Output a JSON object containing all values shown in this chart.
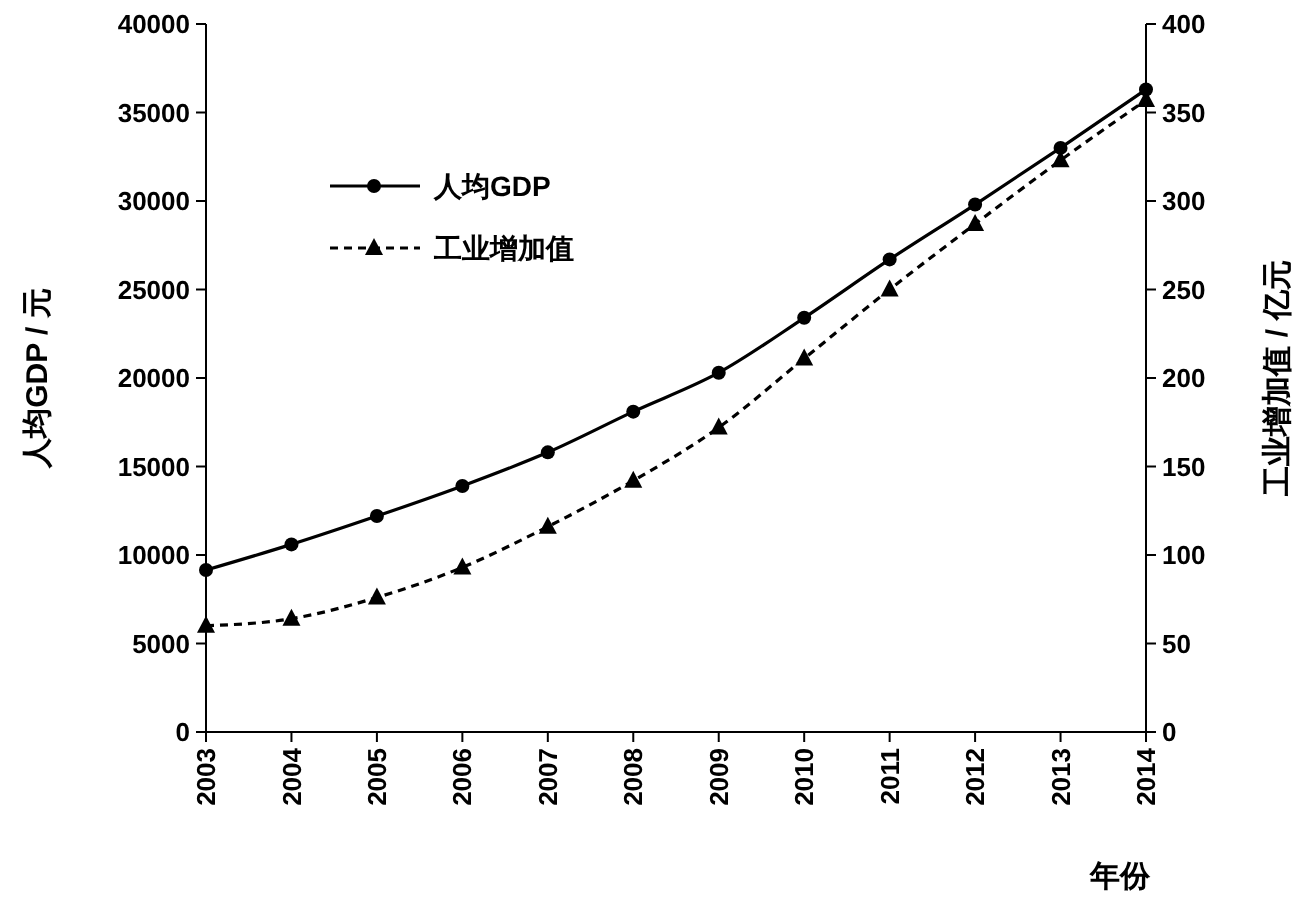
{
  "chart_data": {
    "type": "line",
    "xlabel": "年份",
    "ylabel": "人均GDP / 元",
    "y2label": "工业增加值 / 亿元",
    "categories": [
      "2003",
      "2004",
      "2005",
      "2006",
      "2007",
      "2008",
      "2009",
      "2010",
      "2011",
      "2012",
      "2013",
      "2014"
    ],
    "series": [
      {
        "name": "人均GDP",
        "color": "#000000",
        "marker": "circle",
        "line_style": "solid",
        "values": [
          9150,
          10600,
          12200,
          13900,
          15800,
          18100,
          20300,
          23400,
          26700,
          29800,
          33000,
          36300
        ]
      },
      {
        "name": "工业增加值",
        "color": "#000000",
        "marker": "triangle",
        "line_style": "dashed",
        "axis": "y2",
        "values": [
          60,
          64,
          76,
          93,
          116,
          142,
          172,
          211,
          250,
          287,
          323,
          357
        ]
      }
    ],
    "ylim": [
      0,
      40000
    ],
    "yticks": [
      0,
      5000,
      10000,
      15000,
      20000,
      25000,
      30000,
      35000,
      40000
    ],
    "y2lim": [
      0,
      400
    ],
    "y2ticks": [
      0,
      50,
      100,
      150,
      200,
      250,
      300,
      350,
      400
    ],
    "grid": false,
    "legend": "top left"
  }
}
